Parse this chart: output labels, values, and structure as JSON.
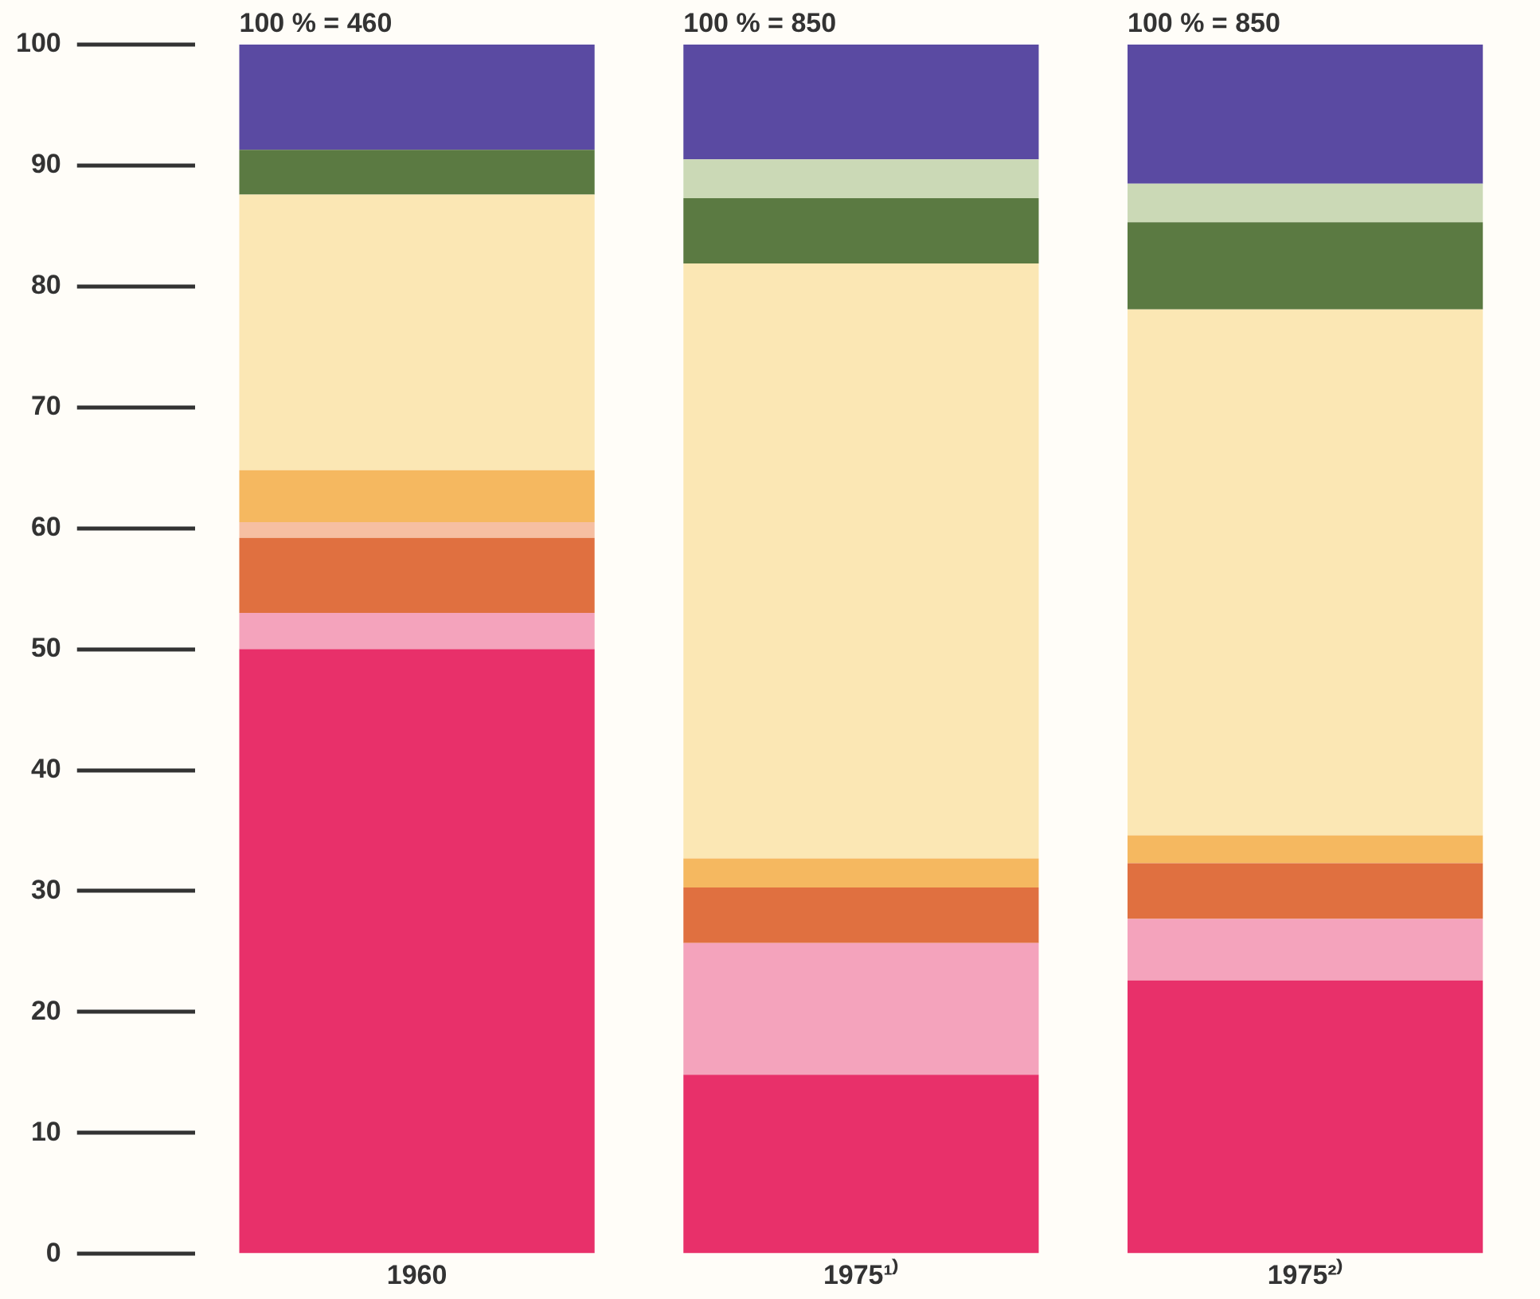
{
  "chart_data": {
    "type": "bar",
    "stacked": true,
    "categories": [
      "1960",
      "1975¹⁾",
      "1975²⁾"
    ],
    "series": [
      {
        "color": "#e8306a",
        "values": [
          50,
          14.8,
          22.6
        ]
      },
      {
        "color": "#f4a3bc",
        "values": [
          3,
          10.9,
          5.1
        ]
      },
      {
        "color": "#e07040",
        "values": [
          6.2,
          4.6,
          4.6
        ]
      },
      {
        "color": "#f6bfa2",
        "values": [
          1.3,
          0,
          0
        ]
      },
      {
        "color": "#f5b860",
        "values": [
          4.3,
          2.4,
          2.3
        ]
      },
      {
        "color": "#fbe7b4",
        "values": [
          22.8,
          49.2,
          43.5
        ]
      },
      {
        "color": "#5b7a42",
        "values": [
          3.7,
          5.4,
          7.2
        ]
      },
      {
        "color": "#cbd9b6",
        "values": [
          0,
          3.2,
          3.2
        ]
      },
      {
        "color": "#5a4aa2",
        "values": [
          8.7,
          9.5,
          11.5
        ]
      }
    ],
    "totals": [
      "100 % = 460",
      "100 % = 850",
      "100 % = 850"
    ],
    "ylim": [
      0,
      100
    ],
    "yticks": [
      0,
      10,
      20,
      30,
      40,
      50,
      60,
      70,
      80,
      90,
      100
    ],
    "grid": false,
    "legend": false
  }
}
